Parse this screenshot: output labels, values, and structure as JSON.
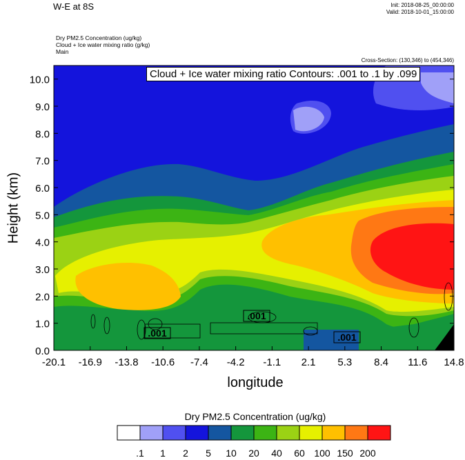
{
  "header": {
    "title": "W-E at 8S",
    "init": "Init: 2018-08-25_00:00:00",
    "valid": "Valid: 2018-10-01_15:00:00",
    "field1": "Dry PM2.5 Concentration   (ug/kg)",
    "field2": "Cloud + Ice water mixing ratio   (g/kg)",
    "field3": "Main",
    "cross_section": "Cross-Section: (130,346) to (454,346)"
  },
  "chart_data": {
    "type": "heatmap",
    "title": "W-E at 8S",
    "xlabel": "longitude",
    "ylabel": "Height (km)",
    "x_ticks": [
      "-20.1",
      "-16.9",
      "-13.8",
      "-10.6",
      "-7.4",
      "-4.2",
      "-1.1",
      "2.1",
      "5.3",
      "8.4",
      "11.6",
      "14.8"
    ],
    "y_ticks": [
      "0.0",
      "1.0",
      "2.0",
      "3.0",
      "4.0",
      "5.0",
      "6.0",
      "7.0",
      "8.0",
      "9.0",
      "10.0"
    ],
    "ylim": [
      0,
      10.5
    ],
    "contour_annotation": "Cloud + Ice water mixing ratio Contours: .001 to .1 by .099",
    "contour_labels": [
      ".001",
      ".001",
      ".001"
    ],
    "colorbar": {
      "title": "Dry PM2.5 Concentration  (ug/kg)",
      "labels": [
        ".1",
        "1",
        "2",
        "5",
        "10",
        "20",
        "40",
        "60",
        "100",
        "150",
        "200"
      ],
      "colors": [
        "#ffffff",
        "#a0a0f8",
        "#5050f0",
        "#1414dc",
        "#1456a0",
        "#14963c",
        "#3cb414",
        "#9bd214",
        "#e6f000",
        "#ffc000",
        "#ff7814",
        "#ff1414"
      ]
    },
    "colors": {
      "c0": "#ffffff",
      "c1": "#a0a0f8",
      "c2": "#5050f0",
      "c3": "#1414dc",
      "c4": "#1456a0",
      "c5": "#14963c",
      "c6": "#3cb414",
      "c7": "#9bd214",
      "c8": "#e6f000",
      "c9": "#ffc000",
      "c10": "#ff7814",
      "c11": "#ff1414"
    }
  }
}
